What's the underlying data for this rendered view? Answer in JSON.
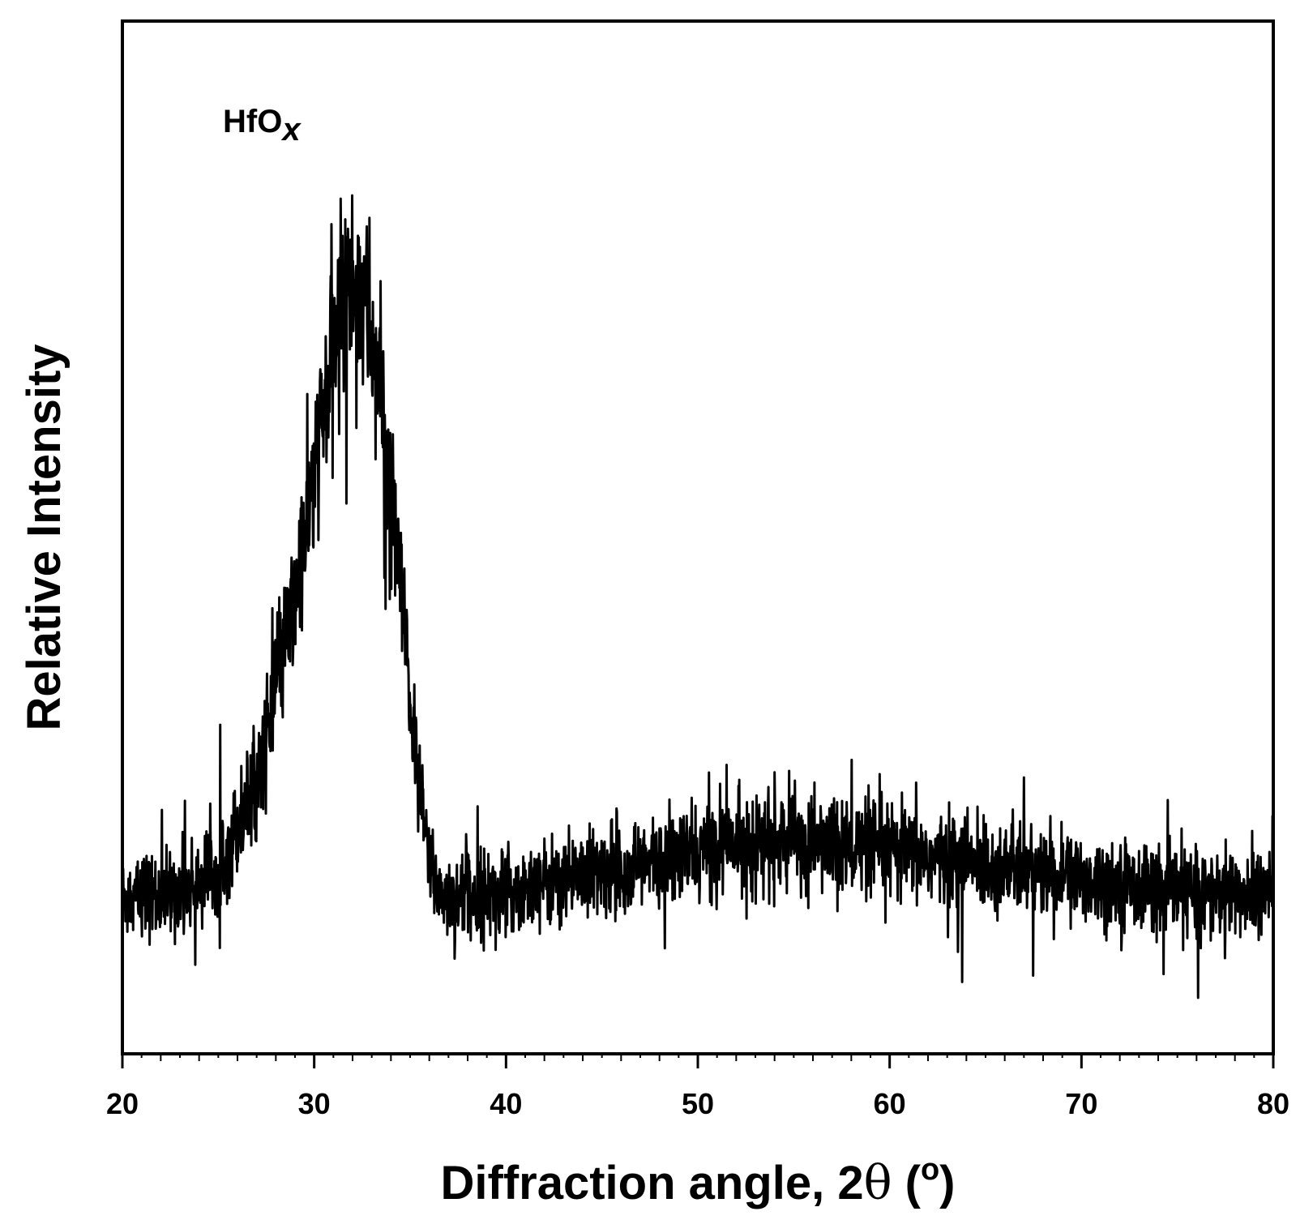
{
  "chart_data": {
    "type": "line",
    "title": "",
    "annotation": {
      "text": "HfO",
      "subscript": "x"
    },
    "xlabel": {
      "text": "Diffraction angle, 2",
      "theta": "θ",
      "paren_open": " (",
      "unit_sup": "o",
      "paren_close": ")"
    },
    "ylabel": "Relative Intensity",
    "xlim": [
      20,
      80
    ],
    "ylim": [
      0,
      100
    ],
    "x_ticks": [
      20,
      30,
      40,
      50,
      60,
      70,
      80
    ],
    "x_tick_labels": [
      "20",
      "30",
      "40",
      "50",
      "60",
      "70",
      "80"
    ],
    "y_ticks_shown": false,
    "grid": false,
    "legend": "none",
    "line_color": "#000000",
    "series": [
      {
        "x": [
          20,
          21,
          22,
          23,
          24,
          25,
          26,
          27,
          28,
          29,
          30,
          30.5,
          31,
          31.5,
          32,
          32.5,
          33,
          33.5,
          34,
          34.5,
          35,
          35.5,
          36,
          36.5,
          37,
          38,
          40,
          42,
          44,
          46,
          48,
          50,
          51,
          52,
          54,
          56,
          58,
          60,
          62,
          64,
          66,
          68,
          70,
          72,
          74,
          76,
          78,
          80
        ],
        "y": [
          15.0,
          15.5,
          15.0,
          16.0,
          16.5,
          18.5,
          22.0,
          26.5,
          35.0,
          44.0,
          56.0,
          62.0,
          68.0,
          73.0,
          74.5,
          73.5,
          69.0,
          63.0,
          55.0,
          45.0,
          34.0,
          25.0,
          19.0,
          16.0,
          15.0,
          15.5,
          15.5,
          16.5,
          17.5,
          18.0,
          18.5,
          19.5,
          20.0,
          20.5,
          20.5,
          20.5,
          20.0,
          19.5,
          19.0,
          18.5,
          18.0,
          17.5,
          17.0,
          16.5,
          16.0,
          15.5,
          15.5,
          15.5
        ]
      }
    ]
  }
}
